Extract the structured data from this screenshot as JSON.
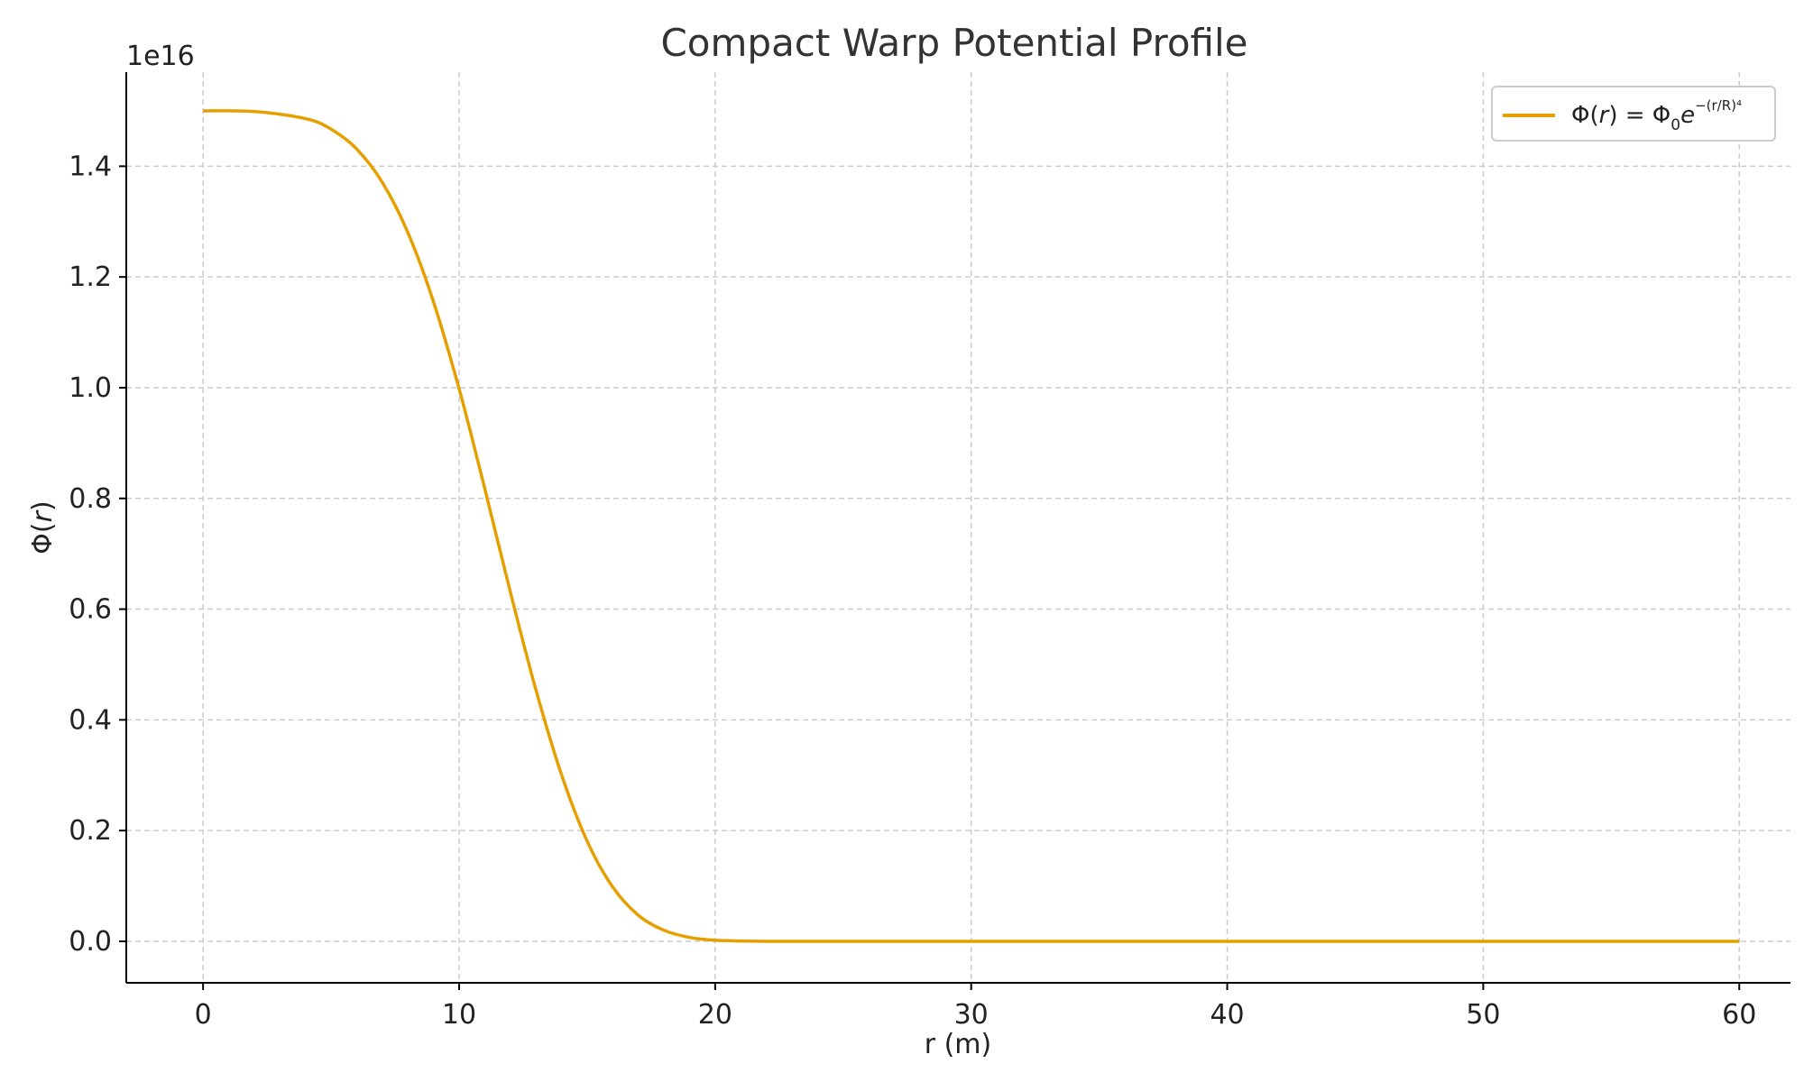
{
  "chart_data": {
    "type": "line",
    "title": "Compact Warp Potential Profile",
    "xlabel": "r (m)",
    "ylabel_parts": {
      "phi": "Φ(",
      "var": "r",
      "close": ")"
    },
    "y_offset_label": "1e16",
    "xlim": [
      -3,
      62
    ],
    "ylim": [
      -0.075,
      1.57
    ],
    "y_scale": 1e+16,
    "x_ticks": [
      0,
      10,
      20,
      30,
      40,
      50,
      60
    ],
    "y_ticks": [
      0.0,
      0.2,
      0.4,
      0.6,
      0.8,
      1.0,
      1.2,
      1.4
    ],
    "x_tick_labels": [
      "0",
      "10",
      "20",
      "30",
      "40",
      "50",
      "60"
    ],
    "y_tick_labels": [
      "0.0",
      "0.2",
      "0.4",
      "0.6",
      "0.8",
      "1.0",
      "1.2",
      "1.4"
    ],
    "grid": true,
    "legend_position": "top-right",
    "series": [
      {
        "name": "Φ(r) = Φ₀e^−(r/R)⁴",
        "color": "#E69F00",
        "x": [
          0,
          2,
          4,
          5,
          6,
          7,
          8,
          9,
          10,
          11,
          12,
          13,
          14,
          15,
          16,
          17,
          18,
          19,
          20,
          22,
          25,
          30,
          40,
          50,
          60
        ],
        "y": [
          1.5,
          1.499,
          1.486,
          1.467,
          1.431,
          1.371,
          1.28,
          1.155,
          0.998,
          0.818,
          0.631,
          0.454,
          0.301,
          0.181,
          0.098,
          0.047,
          0.02,
          0.007,
          0.002,
          0.0,
          0.0,
          0.0,
          0.0,
          0.0,
          0.0
        ]
      }
    ]
  },
  "legend": {
    "phi": "Φ(",
    "var": "r",
    "mid": ") = Φ",
    "sub": "0",
    "e": "e",
    "sup": "−(r/R)⁴"
  }
}
